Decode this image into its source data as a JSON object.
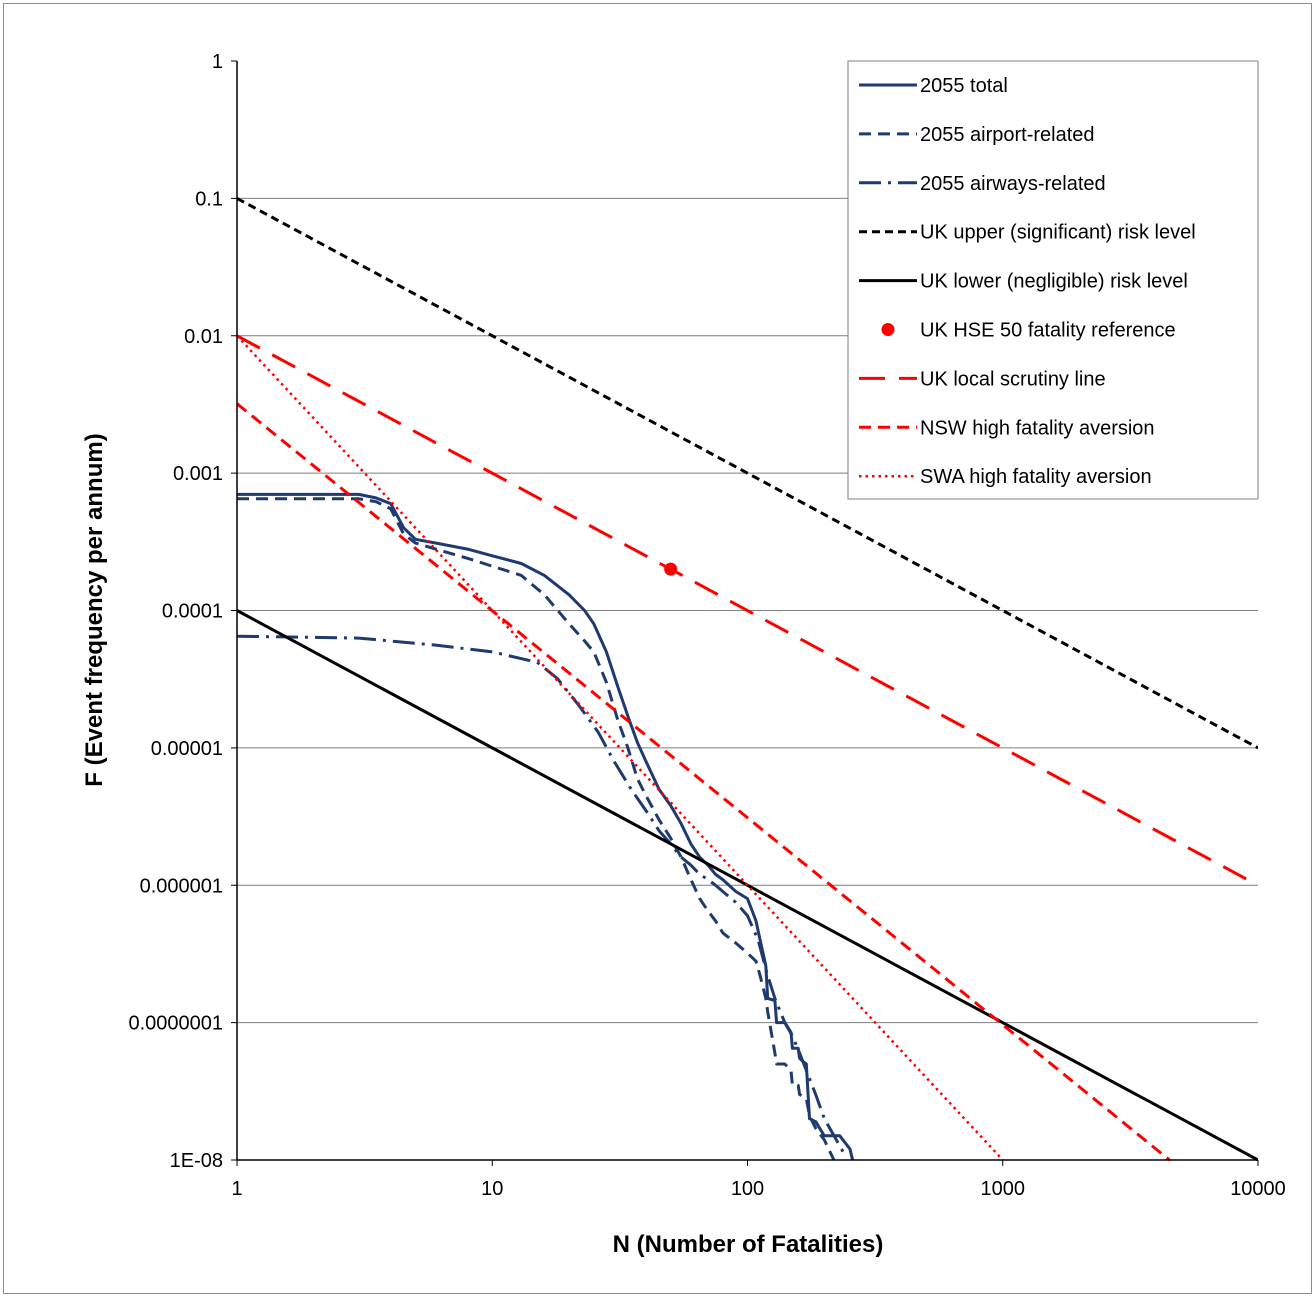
{
  "chart_data": {
    "type": "line",
    "title": "",
    "xlabel": "N (Number of Fatalities)",
    "ylabel": "F (Event frequency per annum)",
    "xscale": "log",
    "yscale": "log",
    "xlim": [
      1,
      10000
    ],
    "ylim": [
      1e-08,
      1
    ],
    "x_tick_labels": [
      "1",
      "10",
      "100",
      "1000",
      "10000"
    ],
    "y_tick_labels": [
      "1",
      "0.1",
      "0.01",
      "0.001",
      "0.0001",
      "0.00001",
      "0.000001",
      "0.0000001",
      "1E-08"
    ],
    "grid": "horizontal major gridlines",
    "legend_position": "top-right",
    "series": [
      {
        "name": "2055 total",
        "color": "#1f3a6e",
        "style": "solid",
        "x": [
          1,
          2,
          3,
          3.5,
          4,
          4.5,
          5,
          6,
          8,
          10,
          13,
          16,
          20,
          23,
          25,
          28,
          31,
          34,
          37,
          40,
          45,
          50,
          55,
          60,
          65,
          70,
          75,
          80,
          90,
          100,
          108,
          112,
          118,
          120,
          128,
          130,
          140,
          148,
          150,
          158,
          160,
          165,
          170,
          175,
          185,
          200,
          230,
          252,
          258
        ],
        "y": [
          0.0007,
          0.0007,
          0.0007,
          0.00066,
          0.0006,
          0.0004,
          0.00033,
          0.00031,
          0.00028,
          0.00025,
          0.00022,
          0.00018,
          0.00013,
          0.0001,
          8e-05,
          5e-05,
          2.8e-05,
          1.7e-05,
          1.1e-05,
          8e-06,
          5e-06,
          3.8e-06,
          2.8e-06,
          2e-06,
          1.6e-06,
          1.4e-06,
          1.2e-06,
          1.1e-06,
          9e-07,
          8e-07,
          5.5e-07,
          4e-07,
          2.6e-07,
          1.5e-07,
          1.45e-07,
          1e-07,
          1e-07,
          8.5e-08,
          6.5e-08,
          6.5e-08,
          5.5e-08,
          5.2e-08,
          5e-08,
          2e-08,
          1.9e-08,
          1.5e-08,
          1.5e-08,
          1.2e-08,
          1e-08
        ]
      },
      {
        "name": "2055 airport-related",
        "color": "#1f3a6e",
        "style": "dashed",
        "x": [
          1,
          2,
          3,
          3.5,
          4,
          4.5,
          5,
          6,
          8,
          10,
          13,
          16,
          20,
          23,
          25,
          28,
          31,
          34,
          37,
          40,
          45,
          50,
          55,
          60,
          65,
          70,
          75,
          80,
          90,
          100,
          108,
          112,
          118,
          120,
          128,
          130,
          140,
          148,
          150,
          158,
          160,
          165,
          170,
          175,
          185,
          200,
          218
        ],
        "y": [
          0.00065,
          0.00065,
          0.00065,
          0.00062,
          0.00055,
          0.00036,
          0.00031,
          0.00028,
          0.00024,
          0.00021,
          0.00018,
          0.00013,
          8e-05,
          6e-05,
          5e-05,
          3e-05,
          1.6e-05,
          1e-05,
          6e-06,
          4.5e-06,
          3e-06,
          2.2e-06,
          1.6e-06,
          1.1e-06,
          8e-07,
          6.5e-07,
          5.5e-07,
          4.5e-07,
          3.8e-07,
          3.2e-07,
          2.8e-07,
          2.2e-07,
          1.5e-07,
          1.2e-07,
          6e-08,
          5e-08,
          5e-08,
          4.5e-08,
          3.5e-08,
          3.5e-08,
          3e-08,
          2.9e-08,
          2.8e-08,
          2.1e-08,
          1.7e-08,
          1.4e-08,
          1e-08
        ]
      },
      {
        "name": "2055 airways-related",
        "color": "#1f3a6e",
        "style": "dash-dot",
        "x": [
          1,
          3,
          6,
          10,
          15,
          18,
          22,
          26,
          30,
          35,
          40,
          45,
          50,
          55,
          60,
          65,
          70,
          75,
          80,
          90,
          100,
          110,
          120,
          128,
          140,
          150,
          160,
          170,
          185,
          200,
          240
        ],
        "y": [
          6.5e-05,
          6.3e-05,
          5.6e-05,
          5e-05,
          4.2e-05,
          3.2e-05,
          2e-05,
          1.3e-05,
          8e-06,
          5e-06,
          3.5e-06,
          2.5e-06,
          2e-06,
          1.6e-06,
          1.4e-06,
          1.2e-06,
          1.1e-06,
          1e-06,
          9e-07,
          7.5e-07,
          6e-07,
          4e-07,
          2.2e-07,
          1.5e-07,
          1e-07,
          8e-08,
          6e-08,
          4.5e-08,
          3e-08,
          2e-08,
          1.1e-08
        ]
      },
      {
        "name": "UK upper (significant) risk level",
        "color": "#000000",
        "style": "short-dashed",
        "x": [
          1,
          10000
        ],
        "y": [
          0.1,
          1e-05
        ]
      },
      {
        "name": "UK lower (negligible) risk level",
        "color": "#000000",
        "style": "solid",
        "x": [
          1,
          10000
        ],
        "y": [
          0.0001,
          1e-08
        ]
      },
      {
        "name": "UK HSE 50 fatality reference",
        "color": "#ff0000",
        "style": "marker",
        "x": [
          50
        ],
        "y": [
          0.0002
        ]
      },
      {
        "name": "UK local scrutiny line",
        "color": "#ff0000",
        "style": "long-dashed",
        "x": [
          1,
          10000
        ],
        "y": [
          0.01,
          1e-06
        ]
      },
      {
        "name": "NSW high fatality aversion",
        "color": "#ff0000",
        "style": "dashed",
        "x": [
          1,
          4500
        ],
        "y": [
          0.0032,
          1e-08
        ]
      },
      {
        "name": "SWA high fatality aversion",
        "color": "#ff0000",
        "style": "dotted",
        "x": [
          1,
          1000
        ],
        "y": [
          0.01,
          1e-08
        ]
      }
    ]
  }
}
